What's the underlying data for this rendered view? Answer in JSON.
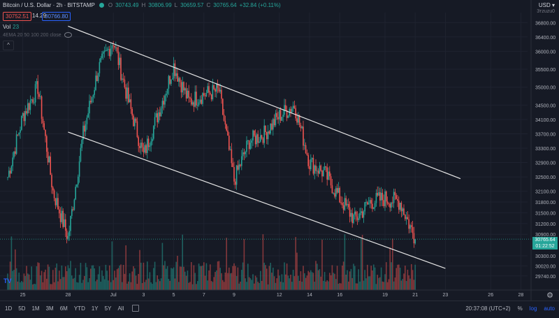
{
  "header": {
    "symbol": "Bitcoin / U.S. Dollar · 2h · BITSTAMP",
    "o_label": "O",
    "o_value": "30743.49",
    "h_label": "H",
    "h_value": "30806.99",
    "l_label": "L",
    "l_value": "30659.57",
    "c_label": "C",
    "c_value": "30765.64",
    "change": "+32.84 (+0.11%)"
  },
  "trade": {
    "sell": "30752.51",
    "spread": "14.29",
    "buy": "30766.80"
  },
  "indicators": {
    "vol_label": "Vol",
    "vol_value": "23",
    "ema_label": "4EMA 20 50 100 200 close"
  },
  "collapse_label": "^",
  "currency": {
    "label": "USD ▾",
    "sub": "3тzuzu0"
  },
  "price_axis": [
    "36800.00",
    "36400.00",
    "36000.00",
    "35500.00",
    "35000.00",
    "34500.00",
    "34100.00",
    "33700.00",
    "33300.00",
    "32900.00",
    "32500.00",
    "32100.00",
    "31800.00",
    "31500.00",
    "31200.00",
    "30900.00",
    "30300.00",
    "30020.00",
    "29740.00"
  ],
  "current_price": {
    "price": "30765.64",
    "countdown": "01:22:52"
  },
  "time_axis": [
    "25",
    "28",
    "Jul",
    "3",
    "5",
    "7",
    "9",
    "12",
    "14",
    "16",
    "19",
    "21",
    "23",
    "26",
    "28"
  ],
  "bottom_bar": {
    "ranges": [
      "1D",
      "5D",
      "1M",
      "3M",
      "6M",
      "YTD",
      "1Y",
      "5Y",
      "All"
    ],
    "time": "20:37:08 (UTC+2)",
    "percent": "%",
    "log": "log",
    "auto": "auto"
  },
  "colors": {
    "up": "#26a69a",
    "down": "#ef5350",
    "accent": "#2962ff",
    "bg": "#161a25"
  },
  "chart_data": {
    "type": "candlestick",
    "title": "Bitcoin / U.S. Dollar · 2h · BITSTAMP",
    "ylim": [
      29600,
      37000
    ],
    "trend_channel": {
      "upper": [
        {
          "x": "28",
          "y": 36700
        },
        {
          "x": "24",
          "y": 32450
        }
      ],
      "lower": [
        {
          "x": "28",
          "y": 33750
        },
        {
          "x": "23",
          "y": 29950
        }
      ]
    },
    "price_path": [
      {
        "x": "23",
        "y": 32500
      },
      {
        "x": "24",
        "y": 34200
      },
      {
        "x": "25",
        "y": 35000
      },
      {
        "x": "26",
        "y": 32100
      },
      {
        "x": "27",
        "y": 30800
      },
      {
        "x": "28",
        "y": 33700
      },
      {
        "x": "29",
        "y": 35500
      },
      {
        "x": "30",
        "y": 36300
      },
      {
        "x": "Jul",
        "y": 34600
      },
      {
        "x": "2",
        "y": 33100
      },
      {
        "x": "3",
        "y": 34300
      },
      {
        "x": "4",
        "y": 35600
      },
      {
        "x": "5",
        "y": 34600
      },
      {
        "x": "6",
        "y": 34800
      },
      {
        "x": "7",
        "y": 34900
      },
      {
        "x": "8",
        "y": 32400
      },
      {
        "x": "9",
        "y": 33500
      },
      {
        "x": "10",
        "y": 33700
      },
      {
        "x": "11",
        "y": 34200
      },
      {
        "x": "12",
        "y": 34500
      },
      {
        "x": "13",
        "y": 32900
      },
      {
        "x": "14",
        "y": 32600
      },
      {
        "x": "15",
        "y": 31900
      },
      {
        "x": "16",
        "y": 31300
      },
      {
        "x": "17",
        "y": 31800
      },
      {
        "x": "18",
        "y": 31900
      },
      {
        "x": "19",
        "y": 31800
      },
      {
        "x": "20",
        "y": 30765.64
      }
    ]
  }
}
